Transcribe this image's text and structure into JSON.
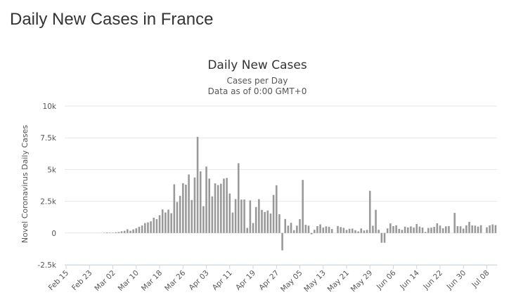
{
  "page": {
    "heading": "Daily New Cases in France"
  },
  "chart_data": {
    "type": "bar",
    "title": "Daily New Cases",
    "subtitle_lines": [
      "Cases per Day",
      "Data as of 0:00 GMT+0"
    ],
    "ylabel": "Novel Coronavirus Daily Cases",
    "xlabel": "",
    "ylim": [
      -2500,
      10000
    ],
    "yticks": [
      -2500,
      0,
      2500,
      5000,
      7500,
      10000
    ],
    "ytick_labels": [
      "-2.5k",
      "0",
      "2.5k",
      "5k",
      "7.5k",
      "10k"
    ],
    "x_start": "2020-02-15",
    "x_end": "2020-07-11",
    "xtick_labels": [
      "Feb 15",
      "Feb 23",
      "Mar 02",
      "Mar 10",
      "Mar 18",
      "Mar 26",
      "Apr 03",
      "Apr 11",
      "Apr 19",
      "Apr 27",
      "May 05",
      "May 13",
      "May 21",
      "May 29",
      "Jun 06",
      "Jun 14",
      "Jun 22",
      "Jun 30",
      "Jul 08"
    ],
    "grid": true,
    "legend": "none",
    "bar_color": "#999999",
    "x": [
      "2020-02-15",
      "2020-02-16",
      "2020-02-17",
      "2020-02-18",
      "2020-02-19",
      "2020-02-20",
      "2020-02-21",
      "2020-02-22",
      "2020-02-23",
      "2020-02-24",
      "2020-02-25",
      "2020-02-26",
      "2020-02-27",
      "2020-02-28",
      "2020-02-29",
      "2020-03-01",
      "2020-03-02",
      "2020-03-03",
      "2020-03-04",
      "2020-03-05",
      "2020-03-06",
      "2020-03-07",
      "2020-03-08",
      "2020-03-09",
      "2020-03-10",
      "2020-03-11",
      "2020-03-12",
      "2020-03-13",
      "2020-03-14",
      "2020-03-15",
      "2020-03-16",
      "2020-03-17",
      "2020-03-18",
      "2020-03-19",
      "2020-03-20",
      "2020-03-21",
      "2020-03-22",
      "2020-03-23",
      "2020-03-24",
      "2020-03-25",
      "2020-03-26",
      "2020-03-27",
      "2020-03-28",
      "2020-03-29",
      "2020-03-30",
      "2020-03-31",
      "2020-04-01",
      "2020-04-02",
      "2020-04-03",
      "2020-04-04",
      "2020-04-05",
      "2020-04-06",
      "2020-04-07",
      "2020-04-08",
      "2020-04-09",
      "2020-04-10",
      "2020-04-11",
      "2020-04-12",
      "2020-04-13",
      "2020-04-14",
      "2020-04-15",
      "2020-04-16",
      "2020-04-17",
      "2020-04-18",
      "2020-04-19",
      "2020-04-20",
      "2020-04-21",
      "2020-04-22",
      "2020-04-23",
      "2020-04-24",
      "2020-04-25",
      "2020-04-26",
      "2020-04-27",
      "2020-04-28",
      "2020-04-29",
      "2020-04-30",
      "2020-05-01",
      "2020-05-02",
      "2020-05-03",
      "2020-05-04",
      "2020-05-05",
      "2020-05-06",
      "2020-05-07",
      "2020-05-08",
      "2020-05-09",
      "2020-05-10",
      "2020-05-11",
      "2020-05-12",
      "2020-05-13",
      "2020-05-14",
      "2020-05-15",
      "2020-05-16",
      "2020-05-17",
      "2020-05-18",
      "2020-05-19",
      "2020-05-20",
      "2020-05-21",
      "2020-05-22",
      "2020-05-23",
      "2020-05-24",
      "2020-05-25",
      "2020-05-26",
      "2020-05-27",
      "2020-05-28",
      "2020-05-29",
      "2020-05-30",
      "2020-05-31",
      "2020-06-01",
      "2020-06-02",
      "2020-06-03",
      "2020-06-04",
      "2020-06-05",
      "2020-06-06",
      "2020-06-07",
      "2020-06-08",
      "2020-06-09",
      "2020-06-10",
      "2020-06-11",
      "2020-06-12",
      "2020-06-13",
      "2020-06-14",
      "2020-06-15",
      "2020-06-16",
      "2020-06-17",
      "2020-06-18",
      "2020-06-19",
      "2020-06-20",
      "2020-06-21",
      "2020-06-22",
      "2020-06-23",
      "2020-06-24",
      "2020-06-25",
      "2020-06-26",
      "2020-06-27",
      "2020-06-28",
      "2020-06-29",
      "2020-06-30",
      "2020-07-01",
      "2020-07-02",
      "2020-07-03",
      "2020-07-04",
      "2020-07-05",
      "2020-07-06",
      "2020-07-07",
      "2020-07-08",
      "2020-07-09",
      "2020-07-10",
      "2020-07-11"
    ],
    "values": [
      0,
      0,
      0,
      0,
      0,
      0,
      0,
      0,
      0,
      0,
      0,
      2,
      4,
      20,
      43,
      30,
      30,
      57,
      80,
      138,
      177,
      297,
      180,
      286,
      372,
      495,
      591,
      785,
      838,
      924,
      1210,
      1097,
      1404,
      1861,
      1617,
      1847,
      1559,
      3838,
      2446,
      2929,
      3922,
      3809,
      4611,
      2599,
      4376,
      7578,
      4861,
      2116,
      5233,
      4286,
      2886,
      3912,
      3777,
      3881,
      4286,
      4342,
      3114,
      1613,
      2673,
      5497,
      2633,
      2641,
      405,
      2569,
      785,
      2051,
      2667,
      1827,
      1653,
      1773,
      1537,
      2996,
      3764,
      1483,
      -1365,
      1104,
      582,
      806,
      224,
      583,
      1094,
      4183,
      646,
      579,
      -98,
      256,
      542,
      679,
      429,
      528,
      491,
      316,
      0,
      555,
      467,
      409,
      244,
      337,
      350,
      222,
      124,
      362,
      201,
      246,
      3325,
      572,
      1828,
      257,
      -766,
      -769,
      362,
      756,
      545,
      609,
      329,
      249,
      504,
      442,
      524,
      433,
      707,
      507,
      431,
      86,
      403,
      424,
      483,
      769,
      587,
      382,
      526,
      548,
      0,
      1588,
      542,
      534,
      350,
      602,
      881,
      598,
      581,
      510,
      618,
      0,
      448,
      598,
      677,
      623
    ]
  }
}
